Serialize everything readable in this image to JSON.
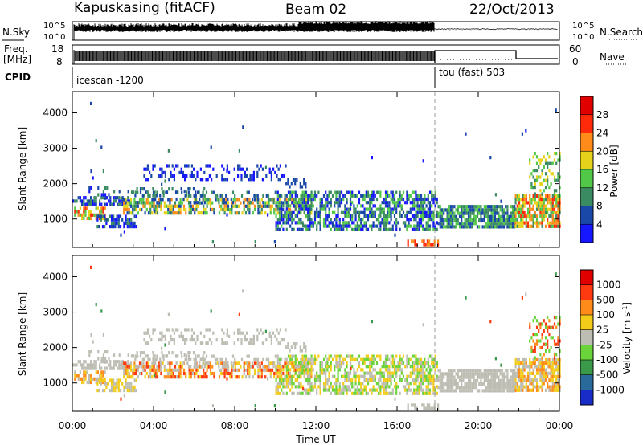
{
  "header": {
    "site": "Kapuskasing (fitACF)",
    "beam": "Beam 02",
    "date": "22/Oct/2013"
  },
  "summary_panels": {
    "nsky": {
      "left_label": "N.Sky",
      "left_ticks": [
        "10^5",
        "10^0"
      ],
      "right_label": "N.Search",
      "right_ticks": [
        "10^5",
        "10^0"
      ]
    },
    "freq": {
      "left_label_1": "Freq.",
      "left_label_2": "[MHz]",
      "left_ticks": [
        "18",
        "8"
      ],
      "right_label": "Nave",
      "right_ticks": [
        "60",
        "0"
      ]
    },
    "cpid": {
      "label": "CPID",
      "modes": [
        {
          "name": "icescan -1200",
          "start_hour": 0,
          "end_hour": 18
        },
        {
          "name": "tou (fast) 503",
          "start_hour": 18,
          "end_hour": 24
        }
      ]
    }
  },
  "chart_data": [
    {
      "type": "heatmap",
      "name": "power",
      "ylabel": "Slant Range [km]",
      "ylim": [
        200,
        4600
      ],
      "yticks": [
        "1000",
        "2000",
        "3000",
        "4000"
      ],
      "ytick_values": [
        1000,
        2000,
        3000,
        4000
      ],
      "xlim": [
        0,
        24
      ],
      "colorbar": {
        "label": "Power [dB]",
        "ticks": [
          "4",
          "8",
          "12",
          "16",
          "20",
          "24",
          "28"
        ],
        "colors": [
          "#1616ff",
          "#1a48a8",
          "#3a8a62",
          "#52c848",
          "#e6d21a",
          "#ff8c1a",
          "#ff2a0a",
          "#e00000"
        ]
      }
    },
    {
      "type": "heatmap",
      "name": "velocity",
      "ylabel": "Slant Range [km]",
      "ylim": [
        200,
        4600
      ],
      "yticks": [
        "1000",
        "2000",
        "3000",
        "4000"
      ],
      "ytick_values": [
        1000,
        2000,
        3000,
        4000
      ],
      "xlim": [
        0,
        24
      ],
      "xlabel": "Time UT",
      "xticks": [
        "00:00",
        "04:00",
        "08:00",
        "12:00",
        "16:00",
        "20:00",
        "00:00"
      ],
      "xtick_values": [
        0,
        4,
        8,
        12,
        16,
        20,
        24
      ],
      "colorbar": {
        "label": "Velocity [m s",
        "label_sup": "-1",
        "label_close": "]",
        "ticks": [
          "1000",
          "500",
          "100",
          "25",
          "-25",
          "-100",
          "-500",
          "-1000"
        ],
        "colors": [
          "#1a2cc8",
          "#2a6a9a",
          "#3a9a4a",
          "#6ad43a",
          "#bdbdb3",
          "#f2cc18",
          "#ff8c1a",
          "#ff3a10",
          "#e00000"
        ]
      }
    }
  ],
  "scatter_regions": [
    {
      "t0": 0.0,
      "t1": 2.8,
      "r0": 1450,
      "r1": 1650,
      "p": [
        "#1a48a8",
        "#1616ff",
        "#3a8a62"
      ],
      "v": [
        "#bdbdb3"
      ],
      "d": 0.55
    },
    {
      "t0": 0.0,
      "t1": 1.6,
      "r0": 1050,
      "r1": 1350,
      "p": [
        "#ff8c1a",
        "#e6d21a",
        "#52c848",
        "#ff2a0a"
      ],
      "v": [
        "#ff8c1a",
        "#f2cc18",
        "#bdbdb3"
      ],
      "d": 0.7
    },
    {
      "t0": 0.8,
      "t1": 2.8,
      "r0": 1600,
      "r1": 2400,
      "p": [
        "#1a48a8",
        "#1616ff",
        "#3a8a62"
      ],
      "v": [
        "#bdbdb3"
      ],
      "d": 0.1
    },
    {
      "t0": 1.2,
      "t1": 3.2,
      "r0": 820,
      "r1": 1120,
      "p": [
        "#1616ff",
        "#1a48a8",
        "#3a8a62"
      ],
      "v": [
        "#bdbdb3",
        "#f2cc18"
      ],
      "d": 0.55
    },
    {
      "t0": 2.8,
      "t1": 6.5,
      "r0": 1700,
      "r1": 1900,
      "p": [
        "#1a48a8",
        "#3a8a62"
      ],
      "v": [
        "#bdbdb3"
      ],
      "d": 0.35
    },
    {
      "t0": 3.5,
      "t1": 10.5,
      "r0": 2150,
      "r1": 2550,
      "p": [
        "#1a48a8",
        "#1616ff"
      ],
      "v": [
        "#bdbdb3"
      ],
      "d": 0.3
    },
    {
      "t0": 2.5,
      "t1": 11.8,
      "r0": 1150,
      "r1": 1600,
      "p": [
        "#1a48a8",
        "#3a8a62",
        "#52c848",
        "#e6d21a",
        "#ff8c1a"
      ],
      "v": [
        "#ff8c1a",
        "#f2cc18",
        "#bdbdb3",
        "#ff3a10"
      ],
      "d": 0.6
    },
    {
      "t0": 3.0,
      "t1": 10.0,
      "r0": 1500,
      "r1": 1800,
      "p": [
        "#1a48a8",
        "#3a8a62"
      ],
      "v": [
        "#bdbdb3"
      ],
      "d": 0.25
    },
    {
      "t0": 10.0,
      "t1": 18.0,
      "r0": 700,
      "r1": 1800,
      "p": [
        "#1a48a8",
        "#1616ff",
        "#3a8a62",
        "#52c848"
      ],
      "v": [
        "#bdbdb3",
        "#6ad43a",
        "#f2cc18"
      ],
      "d": 0.6
    },
    {
      "t0": 10.5,
      "t1": 11.5,
      "r0": 1900,
      "r1": 2150,
      "p": [
        "#1a48a8"
      ],
      "v": [
        "#bdbdb3"
      ],
      "d": 0.5
    },
    {
      "t0": 16.5,
      "t1": 18.0,
      "r0": 280,
      "r1": 420,
      "p": [
        "#ff8c1a",
        "#ff2a0a"
      ],
      "v": [
        "#bdbdb3"
      ],
      "d": 0.5
    },
    {
      "t0": 18.0,
      "t1": 21.8,
      "r0": 800,
      "r1": 1400,
      "p": [
        "#1a48a8",
        "#3a8a62",
        "#52c848"
      ],
      "v": [
        "#bdbdb3"
      ],
      "d": 0.85
    },
    {
      "t0": 21.8,
      "t1": 24.0,
      "r0": 800,
      "r1": 1700,
      "p": [
        "#52c848",
        "#e6d21a",
        "#ff8c1a",
        "#ff2a0a",
        "#3a8a62"
      ],
      "v": [
        "#bdbdb3",
        "#f2cc18",
        "#ff8c1a"
      ],
      "d": 0.8
    },
    {
      "t0": 22.5,
      "t1": 24.0,
      "r0": 1700,
      "r1": 2900,
      "p": [
        "#52c848",
        "#3a8a62",
        "#e6d21a"
      ],
      "v": [
        "#ff3a10",
        "#ff8c1a",
        "#6ad43a"
      ],
      "d": 0.35
    },
    {
      "t0": 0.0,
      "t1": 24.0,
      "r0": 200,
      "r1": 4500,
      "p": [
        "#1a48a8",
        "#1616ff",
        "#3a8a62"
      ],
      "v": [
        "#bdbdb3",
        "#3a9a4a",
        "#ff3a10"
      ],
      "d": 0.0025
    }
  ]
}
